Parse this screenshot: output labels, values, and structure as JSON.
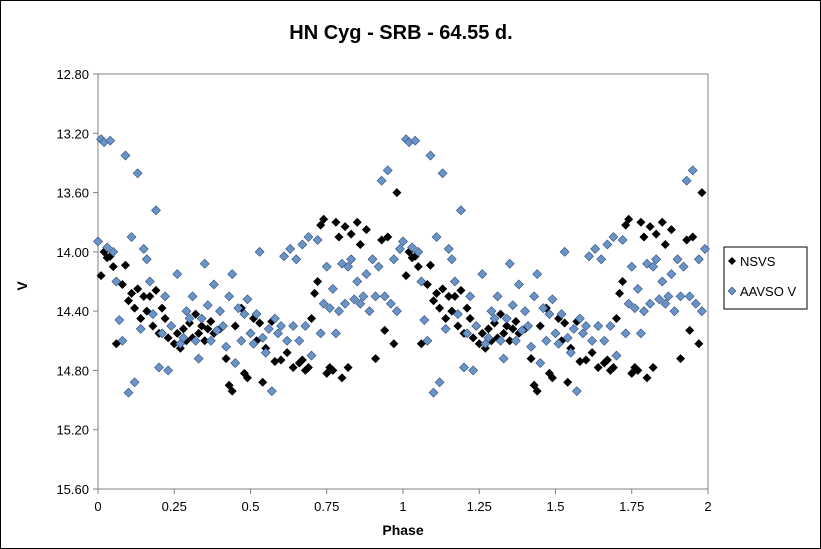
{
  "chart_data": {
    "type": "scatter",
    "title": "HN Cyg - SRB - 64.55 d.",
    "xlabel": "Phase",
    "ylabel": "V",
    "xlim": [
      0,
      2
    ],
    "ylim": [
      12.8,
      15.6
    ],
    "y_reversed": true,
    "x_ticks": [
      "0",
      "0.25",
      "0.5",
      "0.75",
      "1",
      "1.25",
      "1.5",
      "1.75",
      "2"
    ],
    "y_ticks": [
      "12.80",
      "13.20",
      "13.60",
      "14.00",
      "14.40",
      "14.80",
      "15.20",
      "15.60"
    ],
    "legend_position": "right",
    "series": [
      {
        "name": "NSVS",
        "color": "#000000",
        "base_points": [
          [
            0.01,
            14.16
          ],
          [
            0.02,
            14.0
          ],
          [
            0.03,
            14.04
          ],
          [
            0.04,
            14.03
          ],
          [
            0.05,
            14.1
          ],
          [
            0.06,
            14.62
          ],
          [
            0.08,
            14.22
          ],
          [
            0.09,
            14.09
          ],
          [
            0.1,
            14.33
          ],
          [
            0.11,
            14.28
          ],
          [
            0.12,
            14.38
          ],
          [
            0.13,
            14.25
          ],
          [
            0.14,
            14.45
          ],
          [
            0.15,
            14.3
          ],
          [
            0.16,
            14.4
          ],
          [
            0.17,
            14.3
          ],
          [
            0.18,
            14.5
          ],
          [
            0.19,
            14.26
          ],
          [
            0.2,
            14.55
          ],
          [
            0.21,
            14.38
          ],
          [
            0.22,
            14.45
          ],
          [
            0.23,
            14.58
          ],
          [
            0.24,
            14.5
          ],
          [
            0.25,
            14.62
          ],
          [
            0.26,
            14.55
          ],
          [
            0.27,
            14.65
          ],
          [
            0.28,
            14.52
          ],
          [
            0.29,
            14.6
          ],
          [
            0.3,
            14.48
          ],
          [
            0.31,
            14.58
          ],
          [
            0.32,
            14.42
          ],
          [
            0.33,
            14.55
          ],
          [
            0.34,
            14.5
          ],
          [
            0.35,
            14.6
          ],
          [
            0.36,
            14.52
          ],
          [
            0.37,
            14.47
          ],
          [
            0.38,
            14.55
          ],
          [
            0.4,
            14.52
          ],
          [
            0.42,
            14.72
          ],
          [
            0.43,
            14.9
          ],
          [
            0.44,
            14.94
          ],
          [
            0.45,
            14.5
          ],
          [
            0.47,
            14.38
          ],
          [
            0.48,
            14.82
          ],
          [
            0.49,
            14.85
          ],
          [
            0.5,
            14.55
          ],
          [
            0.51,
            14.45
          ],
          [
            0.52,
            14.6
          ],
          [
            0.53,
            14.48
          ],
          [
            0.54,
            14.88
          ],
          [
            0.55,
            14.65
          ],
          [
            0.57,
            14.47
          ],
          [
            0.58,
            14.74
          ],
          [
            0.6,
            14.73
          ],
          [
            0.62,
            14.68
          ],
          [
            0.64,
            14.78
          ],
          [
            0.66,
            14.75
          ],
          [
            0.67,
            14.73
          ],
          [
            0.68,
            14.8
          ],
          [
            0.69,
            14.78
          ],
          [
            0.7,
            14.45
          ],
          [
            0.71,
            14.28
          ],
          [
            0.72,
            14.2
          ],
          [
            0.73,
            13.82
          ],
          [
            0.74,
            13.78
          ],
          [
            0.75,
            14.82
          ],
          [
            0.76,
            14.78
          ],
          [
            0.77,
            14.8
          ],
          [
            0.78,
            13.8
          ],
          [
            0.79,
            13.9
          ],
          [
            0.8,
            14.85
          ],
          [
            0.81,
            13.83
          ],
          [
            0.82,
            14.78
          ],
          [
            0.83,
            13.88
          ],
          [
            0.85,
            13.8
          ],
          [
            0.86,
            13.95
          ],
          [
            0.88,
            13.85
          ],
          [
            0.91,
            14.72
          ],
          [
            0.93,
            13.92
          ],
          [
            0.94,
            14.53
          ],
          [
            0.95,
            13.9
          ],
          [
            0.97,
            14.62
          ],
          [
            0.98,
            13.6
          ]
        ]
      },
      {
        "name": "AAVSO V",
        "color": "#6b93c6",
        "base_points": [
          [
            0.0,
            13.93
          ],
          [
            0.01,
            13.24
          ],
          [
            0.02,
            13.26
          ],
          [
            0.03,
            13.97
          ],
          [
            0.04,
            13.25
          ],
          [
            0.05,
            14.0
          ],
          [
            0.06,
            14.2
          ],
          [
            0.07,
            14.46
          ],
          [
            0.08,
            14.6
          ],
          [
            0.09,
            13.35
          ],
          [
            0.1,
            14.95
          ],
          [
            0.11,
            13.9
          ],
          [
            0.12,
            14.88
          ],
          [
            0.13,
            13.47
          ],
          [
            0.14,
            14.52
          ],
          [
            0.15,
            13.98
          ],
          [
            0.16,
            14.05
          ],
          [
            0.17,
            14.2
          ],
          [
            0.18,
            14.42
          ],
          [
            0.19,
            13.72
          ],
          [
            0.2,
            14.78
          ],
          [
            0.21,
            14.55
          ],
          [
            0.22,
            14.3
          ],
          [
            0.23,
            14.8
          ],
          [
            0.24,
            14.5
          ],
          [
            0.26,
            14.15
          ],
          [
            0.27,
            14.62
          ],
          [
            0.28,
            14.58
          ],
          [
            0.29,
            14.4
          ],
          [
            0.3,
            14.45
          ],
          [
            0.31,
            14.3
          ],
          [
            0.32,
            14.6
          ],
          [
            0.33,
            14.72
          ],
          [
            0.34,
            14.45
          ],
          [
            0.35,
            14.08
          ],
          [
            0.36,
            14.36
          ],
          [
            0.37,
            14.6
          ],
          [
            0.38,
            14.22
          ],
          [
            0.39,
            14.53
          ],
          [
            0.4,
            14.4
          ],
          [
            0.41,
            14.5
          ],
          [
            0.42,
            14.64
          ],
          [
            0.43,
            14.3
          ],
          [
            0.44,
            14.15
          ],
          [
            0.45,
            14.75
          ],
          [
            0.46,
            14.38
          ],
          [
            0.47,
            14.6
          ],
          [
            0.48,
            14.42
          ],
          [
            0.49,
            14.32
          ],
          [
            0.5,
            14.55
          ],
          [
            0.51,
            14.62
          ],
          [
            0.52,
            14.42
          ],
          [
            0.53,
            14.0
          ],
          [
            0.54,
            14.58
          ],
          [
            0.55,
            14.68
          ],
          [
            0.56,
            14.52
          ],
          [
            0.57,
            14.94
          ],
          [
            0.58,
            14.45
          ],
          [
            0.59,
            14.55
          ],
          [
            0.6,
            14.5
          ],
          [
            0.61,
            14.03
          ],
          [
            0.62,
            14.6
          ],
          [
            0.63,
            13.98
          ],
          [
            0.64,
            14.5
          ],
          [
            0.65,
            14.05
          ],
          [
            0.66,
            14.6
          ],
          [
            0.67,
            13.95
          ],
          [
            0.68,
            14.5
          ],
          [
            0.69,
            13.9
          ],
          [
            0.7,
            14.7
          ],
          [
            0.72,
            13.92
          ],
          [
            0.73,
            14.55
          ],
          [
            0.74,
            14.35
          ],
          [
            0.75,
            14.1
          ],
          [
            0.76,
            14.38
          ],
          [
            0.77,
            14.25
          ],
          [
            0.78,
            14.55
          ],
          [
            0.79,
            14.4
          ],
          [
            0.8,
            14.08
          ],
          [
            0.81,
            14.35
          ],
          [
            0.82,
            14.1
          ],
          [
            0.83,
            14.05
          ],
          [
            0.84,
            14.32
          ],
          [
            0.85,
            14.2
          ],
          [
            0.86,
            14.35
          ],
          [
            0.87,
            14.3
          ],
          [
            0.88,
            14.15
          ],
          [
            0.89,
            14.4
          ],
          [
            0.9,
            14.05
          ],
          [
            0.91,
            14.3
          ],
          [
            0.92,
            14.1
          ],
          [
            0.93,
            13.52
          ],
          [
            0.94,
            14.3
          ],
          [
            0.95,
            13.45
          ],
          [
            0.96,
            14.35
          ],
          [
            0.97,
            14.05
          ],
          [
            0.98,
            14.4
          ],
          [
            0.99,
            13.98
          ]
        ]
      }
    ]
  }
}
